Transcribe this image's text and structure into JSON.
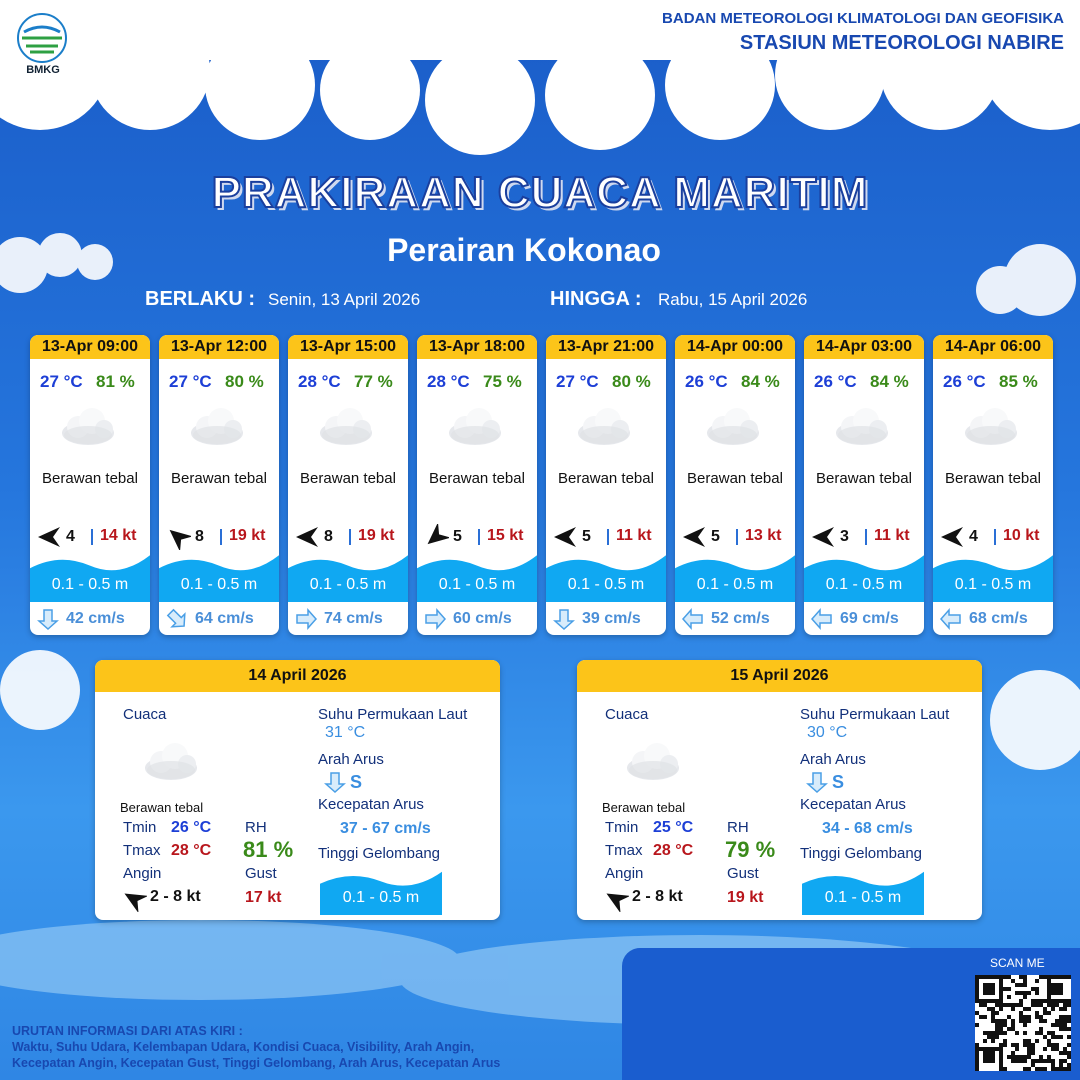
{
  "header": {
    "logo": "BMKG",
    "agency": "BADAN METEOROLOGI KLIMATOLOGI DAN GEOFISIKA",
    "station": "STASIUN METEOROLOGI NABIRE"
  },
  "title": "PRAKIRAAN CUACA MARITIM",
  "subtitle": "Perairan Kokonao",
  "validity": {
    "from_label": "BERLAKU :",
    "from": "Senin, 13 April 2026",
    "to_label": "HINGGA :",
    "to": "Rabu, 15 April 2026"
  },
  "forecasts": [
    {
      "time": "13-Apr 09:00",
      "temp": "27 °C",
      "rh": "81 %",
      "weather": "Berawan tebal",
      "wind": "4",
      "gust": "14 kt",
      "wave": "0.1 - 0.5 m",
      "current": "42 cm/s"
    },
    {
      "time": "13-Apr 12:00",
      "temp": "27 °C",
      "rh": "80 %",
      "weather": "Berawan tebal",
      "wind": "8",
      "gust": "19 kt",
      "wave": "0.1 - 0.5 m",
      "current": "64 cm/s"
    },
    {
      "time": "13-Apr 15:00",
      "temp": "28 °C",
      "rh": "77 %",
      "weather": "Berawan tebal",
      "wind": "8",
      "gust": "19 kt",
      "wave": "0.1 - 0.5 m",
      "current": "74 cm/s"
    },
    {
      "time": "13-Apr 18:00",
      "temp": "28 °C",
      "rh": "75 %",
      "weather": "Berawan tebal",
      "wind": "5",
      "gust": "15 kt",
      "wave": "0.1 - 0.5 m",
      "current": "60 cm/s"
    },
    {
      "time": "13-Apr 21:00",
      "temp": "27 °C",
      "rh": "80 %",
      "weather": "Berawan tebal",
      "wind": "5",
      "gust": "11 kt",
      "wave": "0.1 - 0.5 m",
      "current": "39 cm/s"
    },
    {
      "time": "14-Apr 00:00",
      "temp": "26 °C",
      "rh": "84 %",
      "weather": "Berawan tebal",
      "wind": "5",
      "gust": "13 kt",
      "wave": "0.1 - 0.5 m",
      "current": "52 cm/s"
    },
    {
      "time": "14-Apr 03:00",
      "temp": "26 °C",
      "rh": "84 %",
      "weather": "Berawan tebal",
      "wind": "3",
      "gust": "11 kt",
      "wave": "0.1 - 0.5 m",
      "current": "69 cm/s"
    },
    {
      "time": "14-Apr 06:00",
      "temp": "26 °C",
      "rh": "85 %",
      "weather": "Berawan tebal",
      "wind": "4",
      "gust": "10 kt",
      "wave": "0.1 - 0.5 m",
      "current": "68 cm/s"
    }
  ],
  "daily_labels": {
    "weather": "Cuaca",
    "tmin": "Tmin",
    "tmax": "Tmax",
    "wind": "Angin",
    "rh": "RH",
    "gust": "Gust",
    "sst": "Suhu Permukaan Laut",
    "current_dir": "Arah Arus",
    "current_speed": "Kecepatan Arus",
    "wave": "Tinggi Gelombang"
  },
  "daily": [
    {
      "date": "14 April 2026",
      "weather": "Berawan tebal",
      "tmin": "26 °C",
      "tmax": "28 °C",
      "wind": "2 - 8 kt",
      "rh": "81 %",
      "gust": "17 kt",
      "sst": "31 °C",
      "current_dir": "S",
      "current_speed": "37 - 67 cm/s",
      "wave": "0.1 - 0.5 m"
    },
    {
      "date": "15 April 2026",
      "weather": "Berawan tebal",
      "tmin": "25 °C",
      "tmax": "28 °C",
      "wind": "2 - 8 kt",
      "rh": "79 %",
      "gust": "19 kt",
      "sst": "30 °C",
      "current_dir": "S",
      "current_speed": "34 - 68 cm/s",
      "wave": "0.1 - 0.5 m"
    }
  ],
  "scan": "SCAN ME",
  "footer": {
    "title": "URUTAN INFORMASI DARI ATAS KIRI :",
    "lines": [
      "Waktu, Suhu Udara, Kelembapan Udara, Kondisi Cuaca, Visibility, Arah Angin,",
      "Kecepatan Angin, Kecepatan Gust, Tinggi Gelombang, Arah Arus, Kecepatan Arus"
    ]
  }
}
